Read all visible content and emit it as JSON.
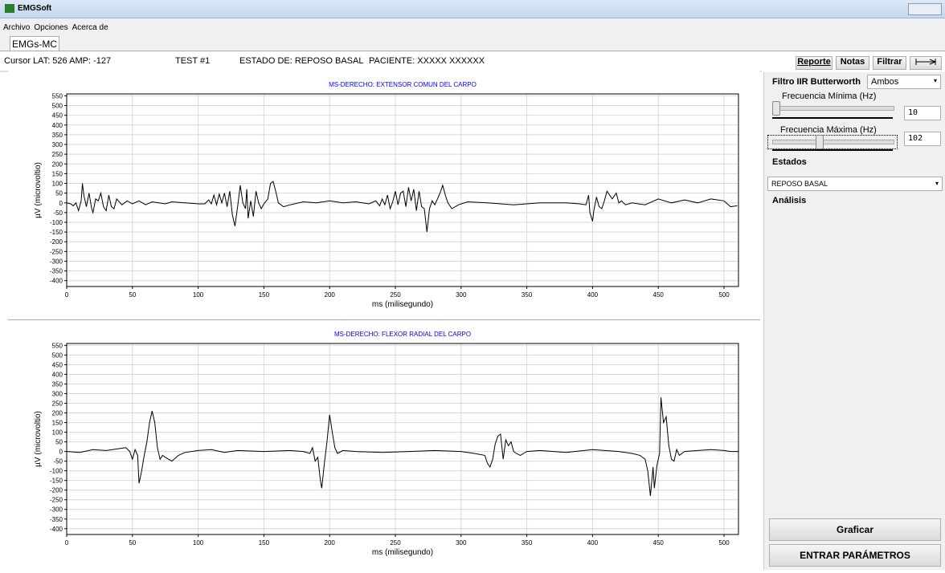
{
  "window": {
    "title": "EMGSoft"
  },
  "menu": [
    "Archivo",
    "Opciones",
    "Acerca de"
  ],
  "tabs": [
    "EMGs-MC"
  ],
  "status": {
    "cursor": "Cursor LAT: 526  AMP: -127",
    "test": "TEST #1",
    "estado": "ESTADO DE: REPOSO BASAL",
    "paciente": "PACIENTE: XXXXX XXXXXX"
  },
  "toolbar": [
    "Reporte",
    "Notas",
    "Filtrar"
  ],
  "panel": {
    "filter_label": "Filtro IIR Butterworth",
    "filter_mode": "Ambos",
    "min_label": "Frecuencia Mínima (Hz)",
    "min_value": "10",
    "max_label": "Frecuencia Máxima (Hz)",
    "max_value": "102",
    "estados_label": "Estados",
    "estado_value": "REPOSO BASAL",
    "analisis_label": "Análisis",
    "graficar": "Graficar",
    "entrar": "ENTRAR PARÁMETROS"
  },
  "chart_data": [
    {
      "type": "line",
      "title": "MS-DERECHO:  EXTENSOR COMUN DEL CARPO",
      "x_label": "ms (milisegundo)",
      "y_label": "µV (microvoltio)",
      "color": "#000000",
      "grid": true,
      "xlim": [
        0,
        511
      ],
      "ylim": [
        -430,
        560
      ],
      "xticks": [
        0,
        50,
        100,
        150,
        200,
        250,
        300,
        350,
        400,
        450,
        500
      ],
      "yticks": [
        550,
        500,
        450,
        400,
        350,
        300,
        250,
        200,
        150,
        100,
        50,
        0,
        -50,
        -100,
        -150,
        -200,
        -250,
        -300,
        -350,
        -400
      ],
      "x": [
        0,
        3,
        5,
        7,
        9,
        11,
        12,
        13,
        15,
        17,
        19,
        20,
        22,
        24,
        26,
        28,
        30,
        32,
        34,
        36,
        38,
        42,
        46,
        50,
        55,
        60,
        65,
        70,
        75,
        80,
        90,
        100,
        105,
        108,
        110,
        112,
        114,
        116,
        118,
        120,
        122,
        124,
        126,
        128,
        130,
        132,
        134,
        136,
        137,
        138,
        140,
        142,
        144,
        146,
        148,
        150,
        153,
        155,
        157,
        159,
        161,
        163,
        165,
        170,
        180,
        190,
        200,
        210,
        220,
        230,
        235,
        238,
        240,
        242,
        244,
        246,
        248,
        250,
        252,
        254,
        256,
        258,
        260,
        262,
        264,
        266,
        268,
        270,
        272,
        274,
        276,
        278,
        280,
        282,
        284,
        286,
        288,
        290,
        293,
        298,
        305,
        320,
        340,
        360,
        380,
        390,
        395,
        397,
        398,
        400,
        401,
        403,
        405,
        407,
        409,
        411,
        413,
        415,
        418,
        420,
        422,
        425,
        430,
        440,
        450,
        460,
        470,
        480,
        490,
        500,
        505,
        510
      ],
      "values": [
        0,
        -5,
        -15,
        0,
        -40,
        10,
        100,
        40,
        -20,
        50,
        -30,
        -50,
        20,
        10,
        50,
        -20,
        -40,
        40,
        -20,
        -30,
        20,
        -10,
        10,
        -5,
        10,
        -10,
        5,
        0,
        -5,
        5,
        0,
        -5,
        -5,
        15,
        -5,
        40,
        -10,
        45,
        0,
        50,
        -20,
        60,
        -60,
        -120,
        -20,
        90,
        0,
        -30,
        70,
        -80,
        10,
        -70,
        60,
        0,
        -30,
        -5,
        20,
        100,
        110,
        60,
        0,
        -10,
        -20,
        -10,
        5,
        0,
        10,
        0,
        5,
        -5,
        10,
        -15,
        20,
        -10,
        40,
        -30,
        5,
        60,
        -10,
        50,
        60,
        -20,
        80,
        10,
        70,
        -40,
        60,
        -20,
        -30,
        -150,
        -30,
        10,
        -10,
        20,
        50,
        90,
        40,
        0,
        -30,
        -10,
        5,
        0,
        -10,
        0,
        0,
        -5,
        -10,
        40,
        -50,
        -95,
        -40,
        30,
        -20,
        -30,
        10,
        60,
        40,
        20,
        50,
        0,
        10,
        -10,
        0,
        -10,
        20,
        0,
        15,
        0,
        20,
        10,
        -20,
        -15
      ]
    },
    {
      "type": "line",
      "title": "MS-DERECHO:  FLEXOR RADIAL DEL CARPO",
      "x_label": "ms (milisegundo)",
      "y_label": "µV (microvoltio)",
      "color": "#000000",
      "grid": true,
      "xlim": [
        0,
        511
      ],
      "ylim": [
        -430,
        560
      ],
      "xticks": [
        0,
        50,
        100,
        150,
        200,
        250,
        300,
        350,
        400,
        450,
        500
      ],
      "yticks": [
        550,
        500,
        450,
        400,
        350,
        300,
        250,
        200,
        150,
        100,
        50,
        0,
        -50,
        -100,
        -150,
        -200,
        -250,
        -300,
        -350,
        -400
      ],
      "x": [
        0,
        10,
        20,
        30,
        40,
        45,
        48,
        50,
        52,
        54,
        55,
        57,
        59,
        61,
        63,
        65,
        67,
        69,
        71,
        73,
        75,
        80,
        85,
        90,
        100,
        110,
        120,
        130,
        150,
        170,
        180,
        185,
        187,
        189,
        191,
        193,
        194,
        196,
        198,
        200,
        202,
        204,
        206,
        210,
        220,
        240,
        260,
        280,
        300,
        310,
        318,
        320,
        322,
        324,
        326,
        328,
        330,
        332,
        334,
        336,
        338,
        340,
        342,
        345,
        350,
        360,
        380,
        400,
        420,
        430,
        436,
        440,
        442,
        444,
        446,
        447,
        449,
        451,
        452,
        454,
        456,
        458,
        460,
        462,
        464,
        466,
        470,
        480,
        490,
        500,
        505,
        511
      ],
      "values": [
        0,
        -5,
        10,
        5,
        15,
        20,
        0,
        -40,
        10,
        -20,
        -165,
        -100,
        -20,
        50,
        150,
        210,
        150,
        20,
        -40,
        -20,
        -30,
        -50,
        -20,
        -5,
        5,
        10,
        -5,
        5,
        0,
        5,
        0,
        -10,
        20,
        -50,
        -30,
        -150,
        -190,
        -60,
        50,
        190,
        100,
        20,
        -10,
        5,
        0,
        -5,
        0,
        5,
        0,
        -10,
        -20,
        -60,
        -80,
        -40,
        40,
        80,
        90,
        -40,
        60,
        30,
        50,
        0,
        -10,
        -20,
        0,
        5,
        -5,
        10,
        0,
        -10,
        -20,
        -40,
        -100,
        -230,
        -80,
        -190,
        -70,
        -10,
        280,
        150,
        180,
        30,
        -40,
        -50,
        10,
        -20,
        0,
        5,
        10,
        5,
        0,
        0
      ]
    }
  ]
}
